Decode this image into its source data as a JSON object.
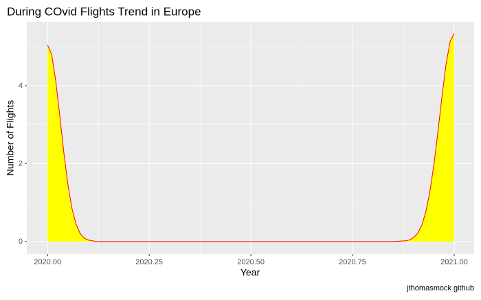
{
  "chart_data": {
    "type": "area",
    "title": "During COvid Flights Trend in Europe",
    "x_label": "Year",
    "y_label": "Number of Flights",
    "caption": "jthomasmock github",
    "x": [
      2020.0,
      2020.01,
      2020.02,
      2020.03,
      2020.04,
      2020.05,
      2020.06,
      2020.07,
      2020.08,
      2020.09,
      2020.1,
      2020.12,
      2020.15,
      2020.85,
      2020.88,
      2020.89,
      2020.9,
      2020.91,
      2020.92,
      2020.93,
      2020.94,
      2020.95,
      2020.96,
      2020.97,
      2020.98,
      2020.99,
      2021.0
    ],
    "values": [
      5.05,
      4.81,
      4.14,
      3.24,
      2.29,
      1.47,
      0.85,
      0.45,
      0.21,
      0.09,
      0.04,
      0.0,
      0.0,
      0.0,
      0.02,
      0.04,
      0.1,
      0.21,
      0.41,
      0.75,
      1.27,
      1.97,
      2.82,
      3.73,
      4.56,
      5.14,
      5.35
    ],
    "fill_color": "#ffff00",
    "line_color": "#ff0000",
    "xlim": [
      2019.949,
      2021.049
    ],
    "ylim": [
      -0.32,
      5.64
    ],
    "xticks": [
      {
        "value": 2020.0,
        "label": "2020.00"
      },
      {
        "value": 2020.25,
        "label": "2020.25"
      },
      {
        "value": 2020.5,
        "label": "2020.50"
      },
      {
        "value": 2020.75,
        "label": "2020.75"
      },
      {
        "value": 2021.0,
        "label": "2021.00"
      }
    ],
    "yticks": [
      0,
      2,
      4
    ],
    "grid": true,
    "minor_grid": true
  }
}
